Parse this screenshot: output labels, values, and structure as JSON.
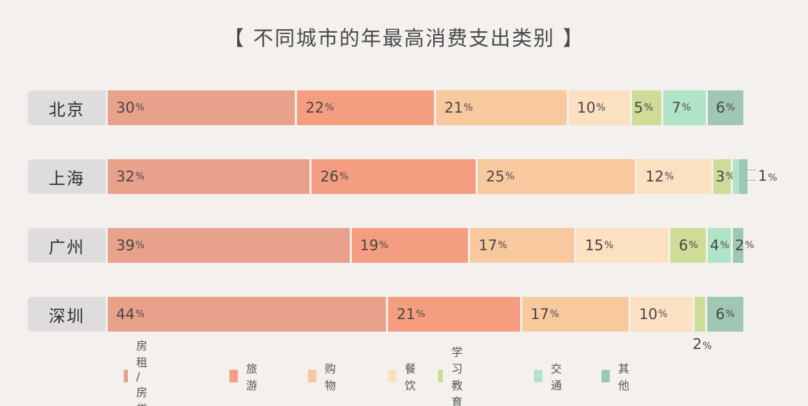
{
  "title": "【 不同城市的年最高消费支出类别 】",
  "percent_sign": "%",
  "categories": [
    {
      "key": "rent",
      "label": "房租 / 房贷",
      "color": "#e8a18b"
    },
    {
      "key": "travel",
      "label": "旅游",
      "color": "#f49d80"
    },
    {
      "key": "shopping",
      "label": "购物",
      "color": "#f8c89e"
    },
    {
      "key": "dining",
      "label": "餐饮",
      "color": "#fbe0c2"
    },
    {
      "key": "education",
      "label": "学习教育",
      "color": "#cfdc98"
    },
    {
      "key": "transport",
      "label": "交通",
      "color": "#b0e4c7"
    },
    {
      "key": "other",
      "label": "其他",
      "color": "#9ec8b4"
    }
  ],
  "rows": [
    {
      "city": "北京",
      "labels": [
        "30",
        "22",
        "21",
        "10",
        "5",
        "7",
        "6"
      ]
    },
    {
      "city": "上海",
      "labels": [
        "32",
        "26",
        "25",
        "12",
        "3"
      ],
      "external_label": "1"
    },
    {
      "city": "广州",
      "labels": [
        "39",
        "19",
        "17",
        "15",
        "6",
        "4",
        "2"
      ]
    },
    {
      "city": "深圳",
      "labels": [
        "44",
        "21",
        "17",
        "10",
        "6"
      ],
      "external_label": "2"
    }
  ],
  "chart_data": {
    "type": "bar",
    "orientation": "horizontal",
    "stacked": true,
    "title": "【 不同城市的年最高消费支出类别 】",
    "categories": [
      "北京",
      "上海",
      "广州",
      "深圳"
    ],
    "series": [
      {
        "name": "房租 / 房贷",
        "color": "#e8a18b",
        "values": [
          30,
          32,
          39,
          44
        ]
      },
      {
        "name": "旅游",
        "color": "#f49d80",
        "values": [
          22,
          26,
          19,
          21
        ]
      },
      {
        "name": "购物",
        "color": "#f8c89e",
        "values": [
          21,
          25,
          17,
          17
        ]
      },
      {
        "name": "餐饮",
        "color": "#fbe0c2",
        "values": [
          10,
          12,
          15,
          10
        ]
      },
      {
        "name": "学习教育",
        "color": "#cfdc98",
        "values": [
          5,
          3,
          6,
          2
        ]
      },
      {
        "name": "交通",
        "color": "#b0e4c7",
        "values": [
          7,
          1,
          4,
          0
        ]
      },
      {
        "name": "其他",
        "color": "#9ec8b4",
        "values": [
          6,
          1,
          2,
          6
        ]
      }
    ],
    "xlabel": "",
    "ylabel": "",
    "xlim": [
      0,
      100
    ],
    "grid": false,
    "legend_position": "bottom",
    "value_suffix": "%"
  }
}
